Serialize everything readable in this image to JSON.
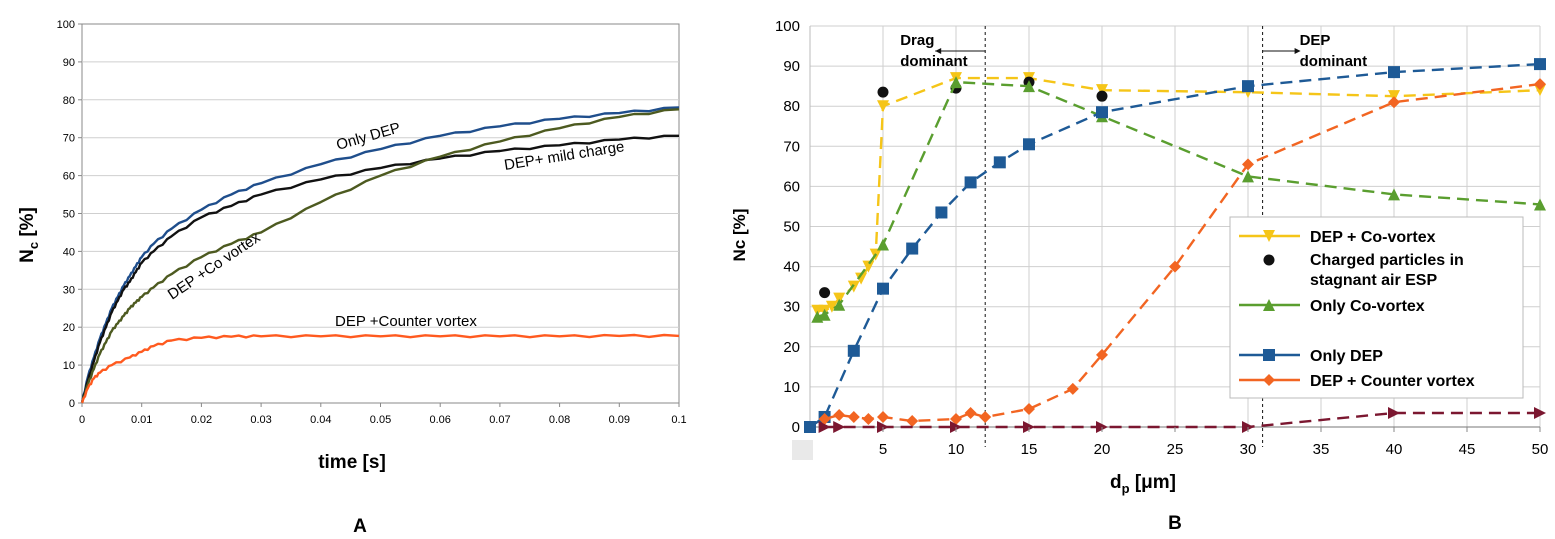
{
  "chart_data": [
    {
      "panel_label": "A",
      "type": "line",
      "title": "",
      "xlabel": "time [s]",
      "ylabel_main": "N",
      "ylabel_sub": "c",
      "ylabel_tail": " [%]",
      "xlim": [
        0,
        0.1
      ],
      "ylim": [
        0,
        100
      ],
      "xticks": [
        "0",
        "0.01",
        "0.02",
        "0.03",
        "0.04",
        "0.05",
        "0.06",
        "0.07",
        "0.08",
        "0.09",
        "0.1"
      ],
      "yticks": [
        "0",
        "10",
        "20",
        "30",
        "40",
        "50",
        "60",
        "70",
        "80",
        "90",
        "100"
      ],
      "grid": "horizontal",
      "series": [
        {
          "name": "Only DEP",
          "color": "#1f4e8c",
          "x": [
            0,
            0.001,
            0.002,
            0.003,
            0.004,
            0.005,
            0.006,
            0.007,
            0.008,
            0.009,
            0.01,
            0.012,
            0.015,
            0.02,
            0.025,
            0.03,
            0.04,
            0.05,
            0.06,
            0.07,
            0.08,
            0.09,
            0.1
          ],
          "y": [
            0,
            7,
            12,
            17,
            21,
            25,
            28,
            31,
            33.5,
            36,
            38.5,
            42,
            46,
            51,
            55,
            58,
            63,
            67,
            70.5,
            73,
            75,
            76.5,
            78
          ]
        },
        {
          "name": "DEP+ mild charge",
          "color": "#111111",
          "x": [
            0,
            0.001,
            0.002,
            0.003,
            0.004,
            0.005,
            0.006,
            0.007,
            0.008,
            0.009,
            0.01,
            0.012,
            0.015,
            0.02,
            0.025,
            0.03,
            0.04,
            0.05,
            0.06,
            0.07,
            0.08,
            0.09,
            0.1
          ],
          "y": [
            0,
            6,
            11,
            16,
            20,
            24,
            27,
            30,
            32,
            34.5,
            37,
            40,
            44,
            49,
            52,
            55,
            59,
            62,
            64.5,
            66.5,
            68,
            69.5,
            70.5
          ]
        },
        {
          "name": "DEP +Co vortex",
          "color": "#4d5a20",
          "x": [
            0,
            0.001,
            0.002,
            0.003,
            0.004,
            0.005,
            0.006,
            0.007,
            0.008,
            0.009,
            0.01,
            0.012,
            0.015,
            0.02,
            0.025,
            0.03,
            0.04,
            0.05,
            0.06,
            0.07,
            0.08,
            0.09,
            0.1
          ],
          "y": [
            0,
            5,
            9,
            13,
            16,
            19,
            21,
            23,
            25,
            26.5,
            28,
            30.5,
            34,
            38.5,
            42,
            45,
            53,
            60,
            65,
            69,
            72.5,
            75.5,
            77.5
          ]
        },
        {
          "name": "DEP +Counter vortex",
          "color": "#ff5a1f",
          "x": [
            0,
            0.001,
            0.002,
            0.003,
            0.005,
            0.008,
            0.01,
            0.012,
            0.015,
            0.02,
            0.025,
            0.03,
            0.04,
            0.05,
            0.06,
            0.07,
            0.08,
            0.09,
            0.1
          ],
          "y": [
            0,
            4,
            6.5,
            8,
            10,
            12,
            13.5,
            15,
            16.5,
            17.2,
            17.5,
            17.6,
            17.6,
            17.6,
            17.6,
            17.6,
            17.6,
            17.7,
            17.7
          ]
        }
      ],
      "annotations": [
        {
          "text": "Only DEP"
        },
        {
          "text": "DEP+ mild charge"
        },
        {
          "text": "DEP +Co vortex"
        },
        {
          "text": "DEP +Counter vortex"
        }
      ]
    },
    {
      "panel_label": "B",
      "type": "line",
      "title": "",
      "xlabel_main": "d",
      "xlabel_sub": "p",
      "xlabel_tail": " [μm]",
      "ylabel": "Nc [%]",
      "xlim": [
        0,
        50
      ],
      "ylim": [
        0,
        100
      ],
      "xticks": [
        5,
        10,
        15,
        20,
        25,
        30,
        35,
        40,
        45,
        50
      ],
      "yticks": [
        0,
        10,
        20,
        30,
        40,
        50,
        60,
        70,
        80,
        90,
        100
      ],
      "grid": "both",
      "regions": [
        {
          "label_line1": "Drag",
          "label_line2": "dominant",
          "boundary_x": 12
        },
        {
          "label_line1": "DEP",
          "label_line2": "dominant",
          "boundary_x": 31
        }
      ],
      "series": [
        {
          "name": "DEP + Co-vortex",
          "color": "#f5c518",
          "marker": "triangle-down",
          "x": [
            0.5,
            1,
            1.5,
            2,
            3,
            3.5,
            4,
            4.5,
            5,
            10,
            15,
            20,
            30,
            40,
            50
          ],
          "y": [
            29,
            29,
            30,
            32,
            35,
            37,
            40,
            43,
            80,
            87,
            87,
            84,
            83.5,
            82.5,
            84
          ]
        },
        {
          "name": "Charged particles in stagnant air ESP",
          "color": "#111111",
          "marker": "circle",
          "x": [
            1,
            5,
            10,
            15,
            20
          ],
          "y": [
            33.5,
            83.5,
            84.5,
            86,
            82.5
          ]
        },
        {
          "name": "Only Co-vortex",
          "color": "#5a9e2f",
          "marker": "triangle-up",
          "x": [
            0.5,
            1,
            2,
            5,
            10,
            15,
            20,
            30,
            40,
            50
          ],
          "y": [
            27.5,
            28,
            30.5,
            45.5,
            86,
            85,
            77.5,
            62.5,
            58,
            55.5
          ]
        },
        {
          "name": "Only DEP",
          "color": "#1e5a96",
          "marker": "square",
          "x": [
            0,
            1,
            3,
            5,
            7,
            9,
            11,
            13,
            15,
            20,
            30,
            40,
            50
          ],
          "y": [
            0,
            2.5,
            19,
            34.5,
            44.5,
            53.5,
            61,
            66,
            70.5,
            78.5,
            85,
            88.5,
            90.5
          ]
        },
        {
          "name": "DEP + Counter vortex",
          "color": "#f26522",
          "marker": "diamond",
          "x": [
            1,
            2,
            3,
            4,
            5,
            7,
            10,
            11,
            12,
            15,
            18,
            20,
            25,
            30,
            40,
            50
          ],
          "y": [
            2,
            3,
            2.5,
            2,
            2.5,
            1.5,
            2,
            3.5,
            2.5,
            4.5,
            9.5,
            18,
            40,
            65.5,
            81,
            85.5
          ]
        },
        {
          "name": "",
          "color": "#7b1730",
          "marker": "triangle-right",
          "x": [
            1,
            2,
            5,
            10,
            15,
            20,
            30,
            40,
            50
          ],
          "y": [
            0,
            0,
            0,
            0,
            0,
            0,
            0,
            3.5,
            3.5
          ]
        }
      ],
      "legend": {
        "placement": "center-right",
        "entries": [
          {
            "label": "DEP + Co-vortex"
          },
          {
            "label": "Charged particles in stagnant air ESP"
          },
          {
            "label": "Only Co-vortex"
          },
          {
            "label": ""
          },
          {
            "label": "Only DEP"
          },
          {
            "label": "DEP + Counter vortex"
          }
        ]
      }
    }
  ]
}
